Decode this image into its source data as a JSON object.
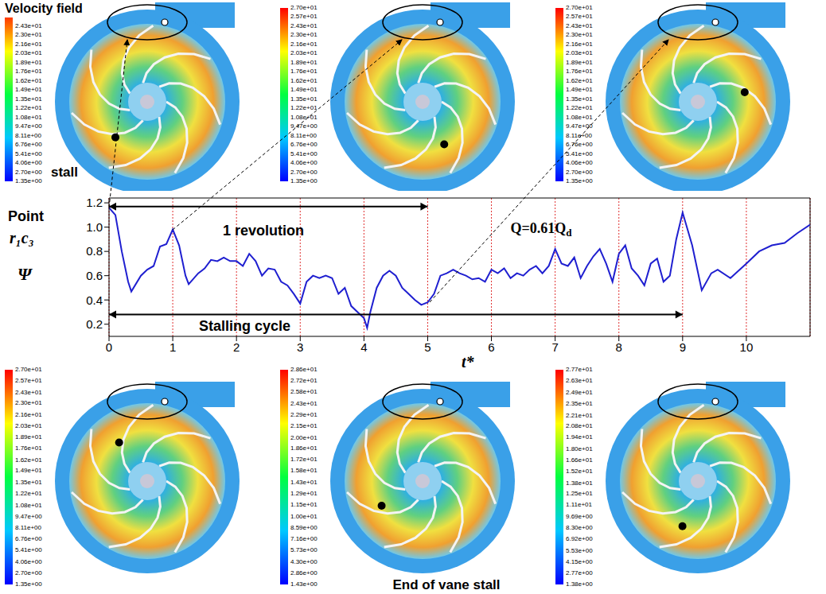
{
  "chart_data": {
    "type": "line",
    "x_label": "t*",
    "y_label": "Ψ",
    "point_label": [
      "Point",
      "r₁c₃"
    ],
    "x": [
      0,
      0.1,
      0.2,
      0.3,
      0.35,
      0.5,
      0.6,
      0.7,
      0.8,
      0.9,
      1.0,
      1.1,
      1.2,
      1.25,
      1.4,
      1.5,
      1.6,
      1.7,
      1.8,
      1.9,
      2.0,
      2.1,
      2.2,
      2.3,
      2.4,
      2.5,
      2.6,
      2.7,
      2.8,
      2.9,
      3.0,
      3.1,
      3.2,
      3.3,
      3.4,
      3.5,
      3.6,
      3.7,
      3.8,
      3.9,
      4.0,
      4.05,
      4.1,
      4.2,
      4.3,
      4.4,
      4.5,
      4.6,
      4.7,
      4.8,
      4.9,
      5.0,
      5.1,
      5.2,
      5.3,
      5.4,
      5.5,
      5.6,
      5.7,
      5.8,
      5.9,
      6.0,
      6.1,
      6.2,
      6.3,
      6.4,
      6.5,
      6.6,
      6.7,
      6.8,
      6.9,
      7.0,
      7.1,
      7.2,
      7.3,
      7.4,
      7.5,
      7.6,
      7.7,
      7.8,
      7.9,
      8.0,
      8.1,
      8.2,
      8.3,
      8.4,
      8.5,
      8.6,
      8.7,
      8.8,
      8.9,
      9.0,
      9.15,
      9.3,
      9.45,
      9.55,
      9.75,
      10.0,
      10.2,
      10.4,
      10.6,
      10.8,
      11.0
    ],
    "series": [
      {
        "name": "Point r₁c₃",
        "color": "#1f1fd0",
        "values": [
          1.16,
          1.1,
          0.8,
          0.55,
          0.47,
          0.6,
          0.65,
          0.68,
          0.84,
          0.86,
          0.98,
          0.85,
          0.6,
          0.53,
          0.62,
          0.66,
          0.73,
          0.72,
          0.75,
          0.72,
          0.72,
          0.68,
          0.78,
          0.72,
          0.6,
          0.66,
          0.65,
          0.55,
          0.52,
          0.45,
          0.37,
          0.55,
          0.6,
          0.58,
          0.6,
          0.58,
          0.45,
          0.5,
          0.35,
          0.3,
          0.25,
          0.17,
          0.3,
          0.5,
          0.6,
          0.64,
          0.6,
          0.5,
          0.45,
          0.4,
          0.36,
          0.38,
          0.45,
          0.6,
          0.62,
          0.65,
          0.62,
          0.6,
          0.57,
          0.58,
          0.55,
          0.65,
          0.62,
          0.66,
          0.58,
          0.62,
          0.6,
          0.65,
          0.68,
          0.62,
          0.68,
          0.82,
          0.7,
          0.68,
          0.75,
          0.58,
          0.68,
          0.76,
          0.82,
          0.7,
          0.55,
          0.78,
          0.85,
          0.66,
          0.6,
          0.52,
          0.7,
          0.74,
          0.55,
          0.6,
          0.9,
          1.12,
          0.85,
          0.48,
          0.62,
          0.65,
          0.58,
          0.7,
          0.8,
          0.85,
          0.87,
          0.95,
          1.02
        ]
      }
    ],
    "xlim": [
      0,
      11
    ],
    "xticks": [
      0,
      1,
      2,
      3,
      4,
      5,
      6,
      7,
      8,
      9,
      10
    ],
    "ylim": [
      0.1,
      1.24
    ],
    "yticks": [
      0.2,
      0.4,
      0.6,
      0.8,
      {
        "value": 1,
        "label": "1.0"
      },
      1.2
    ],
    "grid": true,
    "annotations": [
      {
        "text": "1 revolution",
        "x": [
          0,
          5
        ],
        "y": 1.17
      },
      {
        "text": "Stalling cycle",
        "x": [
          0,
          9
        ],
        "y": 0.28
      },
      {
        "text": "Q=0.61Q",
        "subscript": "d",
        "x": 6.3,
        "y": 0.98
      }
    ]
  },
  "figure": {
    "label": "Velocity field",
    "panels": [
      {
        "label": "stall",
        "colorbar": {
          "range": [
            1.35,
            27
          ],
          "ticks": [
            {
              "value": 24.3,
              "label": "2.43e+01"
            },
            {
              "value": 23.0,
              "label": "2.30e+01"
            },
            {
              "value": 21.6,
              "label": "2.16e+01"
            },
            {
              "value": 20.3,
              "label": "2.03e+01"
            },
            {
              "value": 18.9,
              "label": "1.89e+01"
            },
            {
              "value": 17.6,
              "label": "1.76e+01"
            },
            {
              "value": 16.2,
              "label": "1.62e+01"
            },
            {
              "value": 14.9,
              "label": "1.49e+01"
            },
            {
              "value": 13.5,
              "label": "1.35e+01"
            },
            {
              "value": 12.2,
              "label": "1.22e+01"
            },
            {
              "value": 10.8,
              "label": "1.08e+01"
            },
            {
              "value": 9.47,
              "label": "9.47e+00"
            },
            {
              "value": 8.11,
              "label": "8.11e+00"
            },
            {
              "value": 6.76,
              "label": "6.76e+00"
            },
            {
              "value": 5.41,
              "label": "5.41e+00"
            },
            {
              "value": 4.06,
              "label": "4.06e+00"
            },
            {
              "value": 2.7,
              "label": "2.70e+00"
            },
            {
              "value": 1.35,
              "label": "1.35e+00"
            }
          ]
        }
      },
      {
        "colorbar": {
          "range": [
            1.35,
            27
          ],
          "ticks": [
            {
              "value": 27,
              "label": "2.70e+01"
            },
            {
              "value": 25.7,
              "label": "2.57e+01"
            },
            {
              "value": 24.3,
              "label": "2.43e+01"
            },
            {
              "value": 23.0,
              "label": "2.30e+01"
            },
            {
              "value": 21.6,
              "label": "2.16e+01"
            },
            {
              "value": 20.3,
              "label": "2.03e+01"
            },
            {
              "value": 18.9,
              "label": "1.89e+01"
            },
            {
              "value": 17.6,
              "label": "1.76e+01"
            },
            {
              "value": 16.2,
              "label": "1.62e+01"
            },
            {
              "value": 14.9,
              "label": "1.49e+01"
            },
            {
              "value": 13.5,
              "label": "1.35e+01"
            },
            {
              "value": 12.2,
              "label": "1.22e+01"
            },
            {
              "value": 10.8,
              "label": "1.08e+01"
            },
            {
              "value": 9.47,
              "label": "9.47e+00"
            },
            {
              "value": 8.11,
              "label": "8.11e+00"
            },
            {
              "value": 6.76,
              "label": "6.76e+00"
            },
            {
              "value": 5.41,
              "label": "5.41e+00"
            },
            {
              "value": 4.06,
              "label": "4.06e+00"
            },
            {
              "value": 2.7,
              "label": "2.70e+00"
            },
            {
              "value": 1.35,
              "label": "1.35e+00"
            }
          ]
        }
      },
      {
        "colorbar": {
          "range": [
            1.35,
            27
          ],
          "ticks": [
            {
              "value": 27,
              "label": "2.70e+01"
            },
            {
              "value": 25.7,
              "label": "2.57e+01"
            },
            {
              "value": 24.3,
              "label": "2.43e+01"
            },
            {
              "value": 23.0,
              "label": "2.30e+01"
            },
            {
              "value": 21.6,
              "label": "2.16e+01"
            },
            {
              "value": 20.3,
              "label": "2.03e+01"
            },
            {
              "value": 18.9,
              "label": "1.89e+01"
            },
            {
              "value": 17.6,
              "label": "1.76e+01"
            },
            {
              "value": 16.2,
              "label": "1.62e+01"
            },
            {
              "value": 14.9,
              "label": "1.49e+01"
            },
            {
              "value": 13.5,
              "label": "1.35e+01"
            },
            {
              "value": 12.2,
              "label": "1.22e+01"
            },
            {
              "value": 10.8,
              "label": "1.08e+01"
            },
            {
              "value": 9.47,
              "label": "9.47e+00"
            },
            {
              "value": 8.11,
              "label": "8.11e+00"
            },
            {
              "value": 6.76,
              "label": "6.76e+00"
            },
            {
              "value": 5.41,
              "label": "5.41e+00"
            },
            {
              "value": 4.06,
              "label": "4.06e+00"
            },
            {
              "value": 2.7,
              "label": "2.70e+00"
            },
            {
              "value": 1.35,
              "label": "1.35e+00"
            }
          ]
        }
      },
      {
        "colorbar": {
          "range": [
            1.35,
            27
          ],
          "ticks": [
            {
              "value": 27,
              "label": "2.70e+01"
            },
            {
              "value": 25.7,
              "label": "2.57e+01"
            },
            {
              "value": 24.3,
              "label": "2.43e+01"
            },
            {
              "value": 23.0,
              "label": "2.30e+01"
            },
            {
              "value": 21.6,
              "label": "2.16e+01"
            },
            {
              "value": 20.3,
              "label": "2.03e+01"
            },
            {
              "value": 18.9,
              "label": "1.89e+01"
            },
            {
              "value": 17.6,
              "label": "1.76e+01"
            },
            {
              "value": 16.2,
              "label": "1.62e+01"
            },
            {
              "value": 14.9,
              "label": "1.49e+01"
            },
            {
              "value": 13.5,
              "label": "1.35e+01"
            },
            {
              "value": 12.2,
              "label": "1.22e+01"
            },
            {
              "value": 10.8,
              "label": "1.08e+01"
            },
            {
              "value": 9.47,
              "label": "9.47e+00"
            },
            {
              "value": 8.11,
              "label": "8.11e+00"
            },
            {
              "value": 6.76,
              "label": "6.76e+00"
            },
            {
              "value": 5.41,
              "label": "5.41e+00"
            },
            {
              "value": 4.06,
              "label": "4.06e+00"
            },
            {
              "value": 2.7,
              "label": "2.70e+00"
            },
            {
              "value": 1.35,
              "label": "1.35e+00"
            }
          ]
        }
      },
      {
        "label": "End of vane stall",
        "colorbar": {
          "range": [
            1.43,
            28.6
          ],
          "ticks": [
            {
              "value": 28.6,
              "label": "2.86e+01"
            },
            {
              "value": 27.2,
              "label": "2.72e+01"
            },
            {
              "value": 25.8,
              "label": "2.58e+01"
            },
            {
              "value": 24.3,
              "label": "2.43e+01"
            },
            {
              "value": 22.9,
              "label": "2.29e+01"
            },
            {
              "value": 21.5,
              "label": "2.15e+01"
            },
            {
              "value": 20.0,
              "label": "2.00e+01"
            },
            {
              "value": 18.6,
              "label": "1.86e+01"
            },
            {
              "value": 17.2,
              "label": "1.72e+01"
            },
            {
              "value": 15.8,
              "label": "1.58e+01"
            },
            {
              "value": 14.3,
              "label": "1.43e+01"
            },
            {
              "value": 12.9,
              "label": "1.29e+01"
            },
            {
              "value": 11.5,
              "label": "1.15e+01"
            },
            {
              "value": 10.0,
              "label": "1.00e+01"
            },
            {
              "value": 8.59,
              "label": "8.59e+00"
            },
            {
              "value": 7.16,
              "label": "7.16e+00"
            },
            {
              "value": 5.73,
              "label": "5.73e+00"
            },
            {
              "value": 4.3,
              "label": "4.30e+00"
            },
            {
              "value": 2.86,
              "label": "2.86e+00"
            },
            {
              "value": 1.43,
              "label": "1.43e+00"
            }
          ]
        }
      },
      {
        "colorbar": {
          "range": [
            1.38,
            27.7
          ],
          "ticks": [
            {
              "value": 27.7,
              "label": "2.77e+01"
            },
            {
              "value": 26.3,
              "label": "2.63e+01"
            },
            {
              "value": 24.9,
              "label": "2.49e+01"
            },
            {
              "value": 23.5,
              "label": "2.35e+01"
            },
            {
              "value": 22.1,
              "label": "2.21e+01"
            },
            {
              "value": 20.8,
              "label": "2.08e+01"
            },
            {
              "value": 19.4,
              "label": "1.94e+01"
            },
            {
              "value": 18.0,
              "label": "1.80e+01"
            },
            {
              "value": 16.6,
              "label": "1.66e+01"
            },
            {
              "value": 15.2,
              "label": "1.52e+01"
            },
            {
              "value": 13.8,
              "label": "1.38e+01"
            },
            {
              "value": 12.5,
              "label": "1.25e+01"
            },
            {
              "value": 11.1,
              "label": "1.11e+01"
            },
            {
              "value": 9.69,
              "label": "9.69e+00"
            },
            {
              "value": 8.3,
              "label": "8.30e+00"
            },
            {
              "value": 6.92,
              "label": "6.92e+00"
            },
            {
              "value": 5.53,
              "label": "5.53e+00"
            },
            {
              "value": 4.15,
              "label": "4.15e+00"
            },
            {
              "value": 2.77,
              "label": "2.77e+00"
            },
            {
              "value": 1.38,
              "label": "1.38e+00"
            }
          ]
        }
      }
    ]
  }
}
